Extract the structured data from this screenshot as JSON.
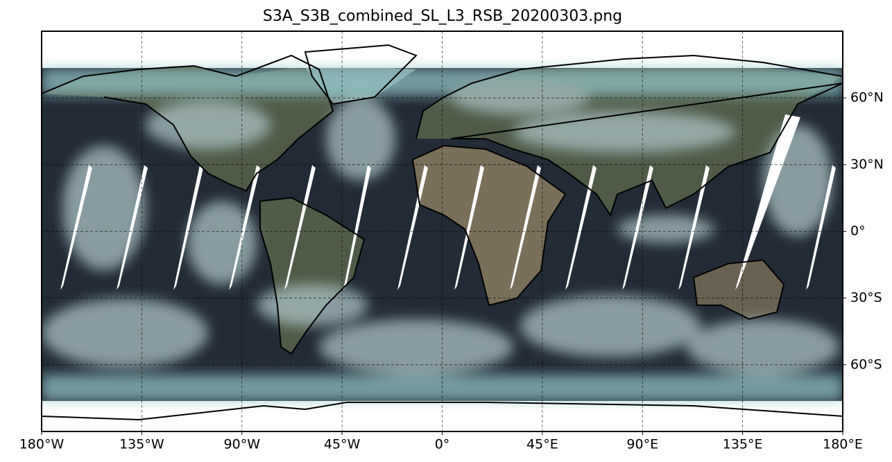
{
  "chart_data": {
    "type": "map",
    "title": "S3A_S3B_combined_SL_L3_RSB_20200303.png",
    "xlim": [
      -180,
      180
    ],
    "ylim": [
      -90,
      90
    ],
    "xticks": [
      {
        "value": -180,
        "label": "180°W"
      },
      {
        "value": -135,
        "label": "135°W"
      },
      {
        "value": -90,
        "label": "90°W"
      },
      {
        "value": -45,
        "label": "45°W"
      },
      {
        "value": 0,
        "label": "0°"
      },
      {
        "value": 45,
        "label": "45°E"
      },
      {
        "value": 90,
        "label": "90°E"
      },
      {
        "value": 135,
        "label": "135°E"
      },
      {
        "value": 180,
        "label": "180°E"
      }
    ],
    "yticks": [
      {
        "value": 60,
        "label": "60°N"
      },
      {
        "value": 30,
        "label": "30°N"
      },
      {
        "value": 0,
        "label": "0°"
      },
      {
        "value": -30,
        "label": "30°S"
      },
      {
        "value": -60,
        "label": "60°S"
      }
    ],
    "grid": true
  }
}
